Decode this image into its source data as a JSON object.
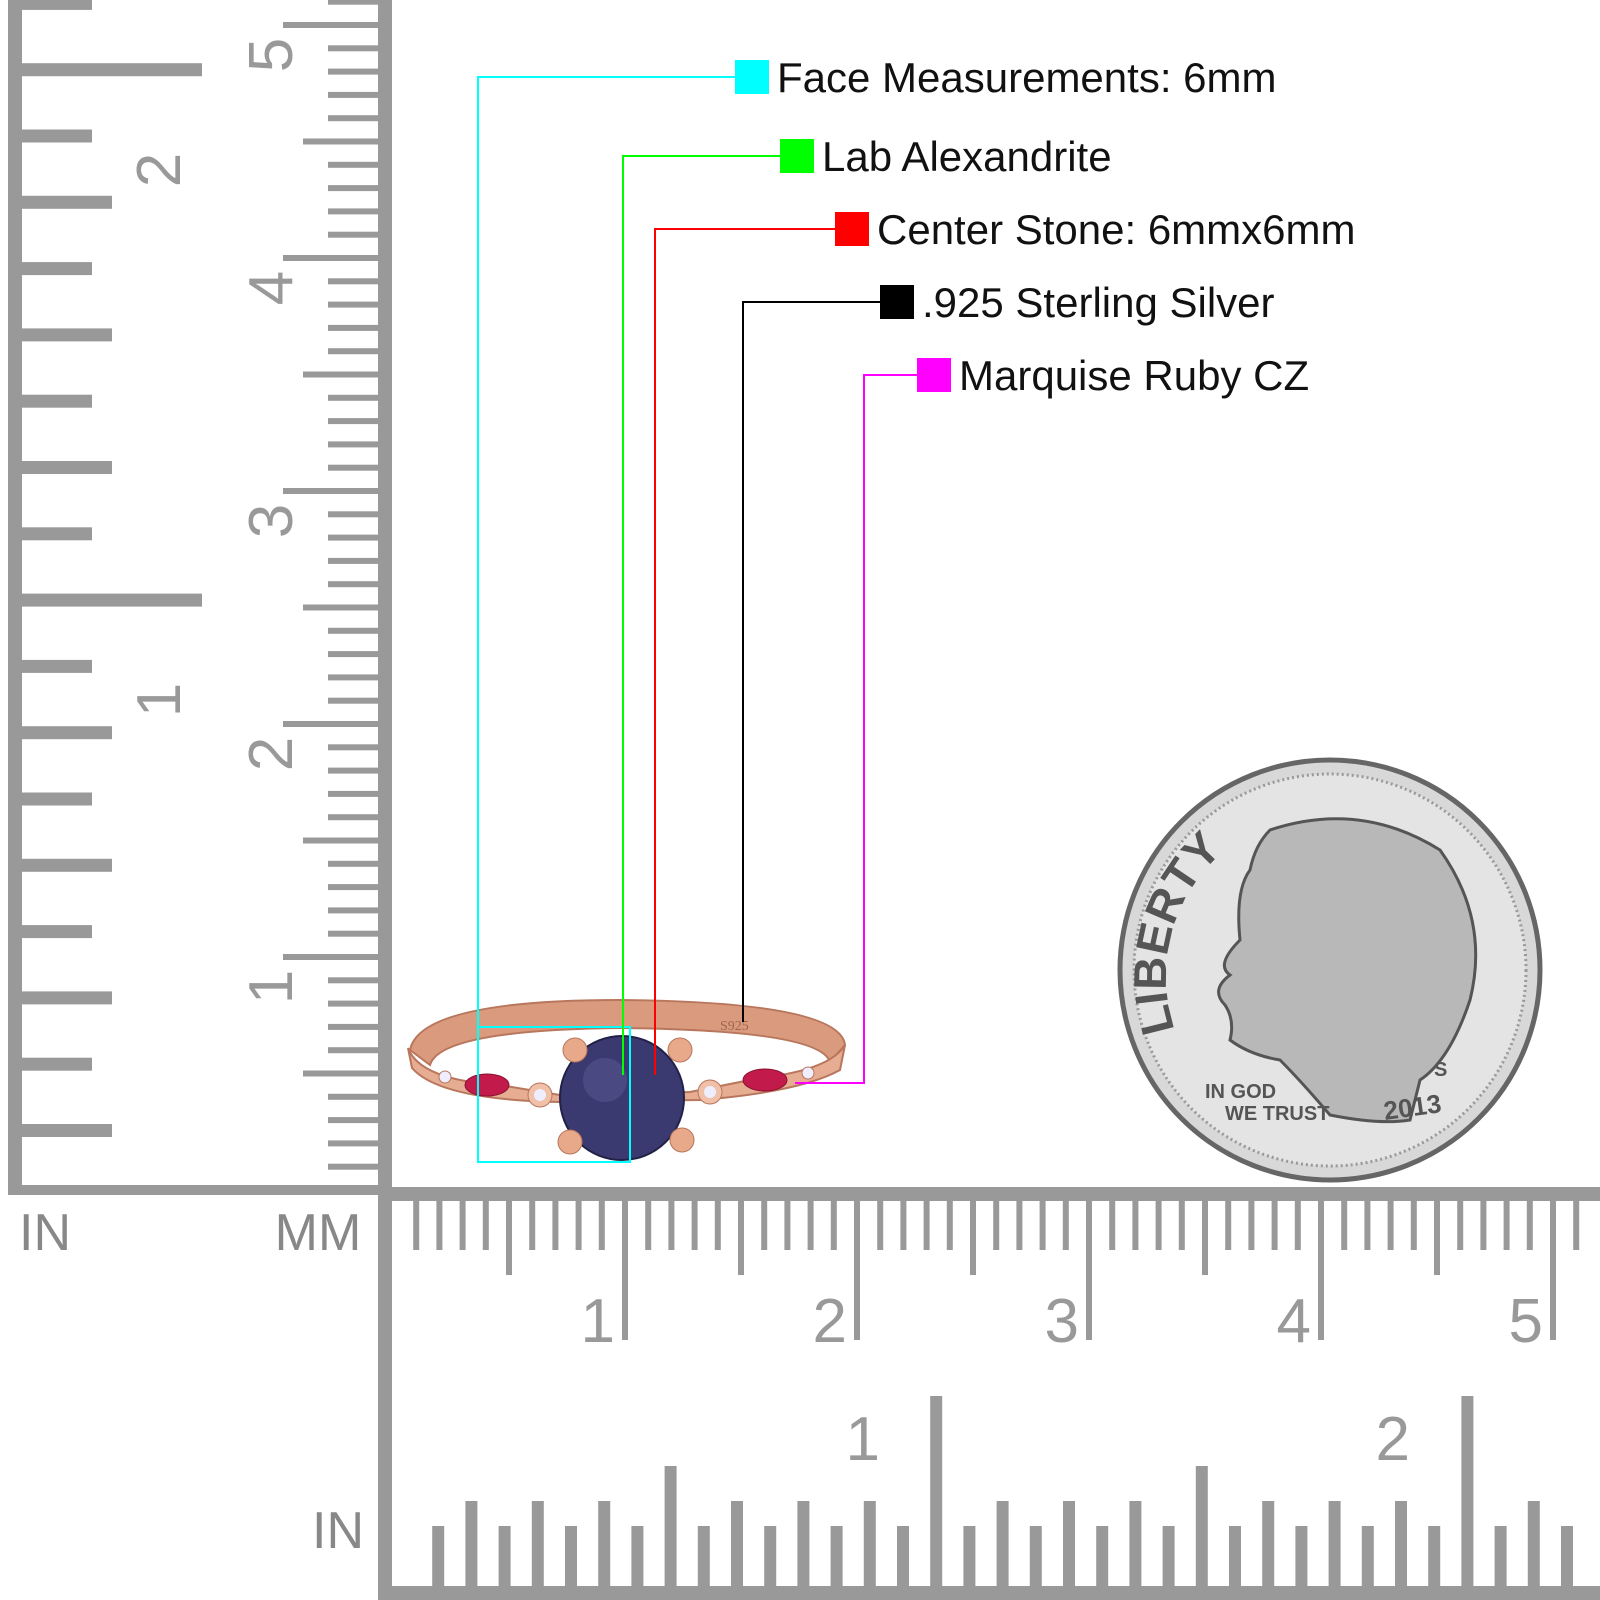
{
  "callouts": [
    {
      "label": "Face Measurements: 6mm",
      "color": "#00ffff"
    },
    {
      "label": "Lab Alexandrite",
      "color": "#00ff00"
    },
    {
      "label": "Center Stone: 6mmx6mm",
      "color": "#ff0000"
    },
    {
      "label": ".925 Sterling Silver",
      "color": "#000000"
    },
    {
      "label": "Marquise Ruby CZ",
      "color": "#ff00ff"
    }
  ],
  "ruler": {
    "corner_labels": [
      "IN",
      "MM"
    ],
    "bottom_label": "IN",
    "vertical_mm": [
      "1",
      "2",
      "3",
      "4",
      "5"
    ],
    "vertical_in": [
      "1",
      "2"
    ],
    "horizontal_mm": [
      "1",
      "2",
      "3",
      "4",
      "5"
    ],
    "horizontal_in": [
      "1",
      "2"
    ]
  },
  "ring": {
    "stamp": "S925"
  },
  "coin": {
    "legend": "LIBERTY",
    "motto_lines": [
      "IN GOD",
      "WE TRUST"
    ],
    "year": "2013",
    "mint_mark": "S"
  }
}
